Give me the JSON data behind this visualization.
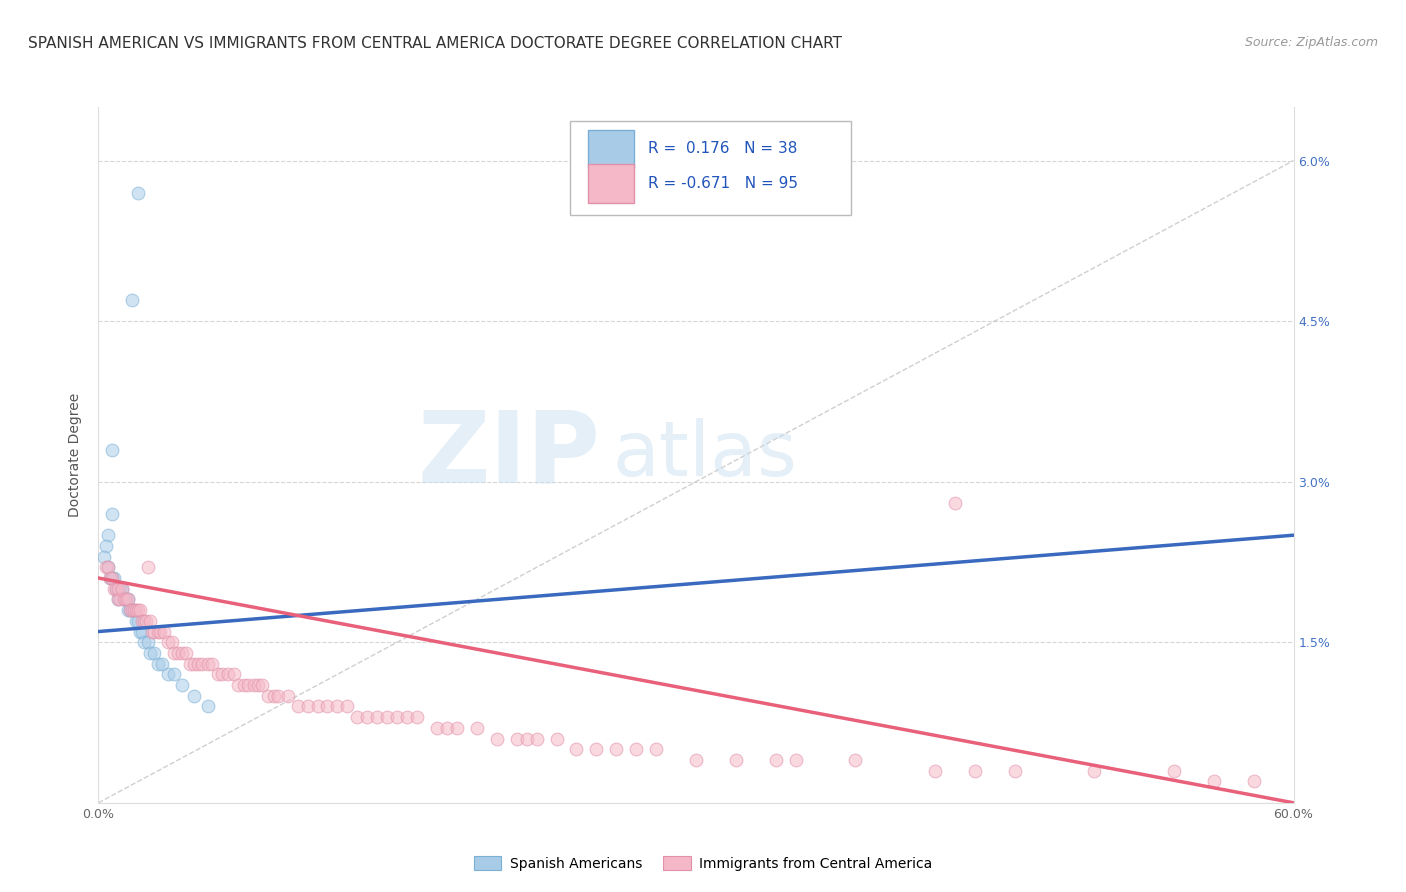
{
  "title": "SPANISH AMERICAN VS IMMIGRANTS FROM CENTRAL AMERICA DOCTORATE DEGREE CORRELATION CHART",
  "source": "Source: ZipAtlas.com",
  "ylabel": "Doctorate Degree",
  "xlim": [
    0.0,
    0.6
  ],
  "ylim": [
    0.0,
    0.065
  ],
  "xticks": [
    0.0,
    0.1,
    0.2,
    0.3,
    0.4,
    0.5,
    0.6
  ],
  "xticklabels": [
    "0.0%",
    "",
    "",
    "",
    "",
    "",
    "60.0%"
  ],
  "yticks": [
    0.0,
    0.015,
    0.03,
    0.045,
    0.06
  ],
  "yticklabels_right": [
    "",
    "1.5%",
    "3.0%",
    "4.5%",
    "6.0%"
  ],
  "blue_color": "#a8cce8",
  "pink_color": "#f5b8c8",
  "blue_line_color": "#3a6abf",
  "pink_line_color": "#e8607a",
  "blue_edge_color": "#7aaed4",
  "pink_edge_color": "#e090a8",
  "watermark_zip": "ZIP",
  "watermark_atlas": "atlas",
  "background_color": "#ffffff",
  "grid_color": "#cccccc",
  "blue_scatter_x": [
    0.02,
    0.017,
    0.007,
    0.007,
    0.005,
    0.004,
    0.003,
    0.005,
    0.006,
    0.007,
    0.008,
    0.009,
    0.01,
    0.01,
    0.011,
    0.012,
    0.013,
    0.014,
    0.015,
    0.015,
    0.016,
    0.017,
    0.018,
    0.019,
    0.02,
    0.021,
    0.022,
    0.023,
    0.025,
    0.026,
    0.028,
    0.03,
    0.032,
    0.035,
    0.038,
    0.042,
    0.048,
    0.055
  ],
  "blue_scatter_y": [
    0.057,
    0.047,
    0.033,
    0.027,
    0.025,
    0.024,
    0.023,
    0.022,
    0.021,
    0.021,
    0.021,
    0.02,
    0.02,
    0.019,
    0.02,
    0.02,
    0.019,
    0.019,
    0.019,
    0.018,
    0.018,
    0.018,
    0.018,
    0.017,
    0.017,
    0.016,
    0.016,
    0.015,
    0.015,
    0.014,
    0.014,
    0.013,
    0.013,
    0.012,
    0.012,
    0.011,
    0.01,
    0.009
  ],
  "pink_scatter_x": [
    0.004,
    0.005,
    0.006,
    0.007,
    0.008,
    0.009,
    0.01,
    0.01,
    0.011,
    0.012,
    0.013,
    0.014,
    0.015,
    0.016,
    0.017,
    0.018,
    0.019,
    0.02,
    0.021,
    0.022,
    0.023,
    0.024,
    0.025,
    0.026,
    0.027,
    0.028,
    0.03,
    0.031,
    0.033,
    0.035,
    0.037,
    0.038,
    0.04,
    0.042,
    0.044,
    0.046,
    0.048,
    0.05,
    0.052,
    0.055,
    0.057,
    0.06,
    0.062,
    0.065,
    0.068,
    0.07,
    0.073,
    0.075,
    0.078,
    0.08,
    0.082,
    0.085,
    0.088,
    0.09,
    0.095,
    0.1,
    0.105,
    0.11,
    0.115,
    0.12,
    0.125,
    0.13,
    0.135,
    0.14,
    0.145,
    0.15,
    0.155,
    0.16,
    0.17,
    0.175,
    0.18,
    0.19,
    0.2,
    0.21,
    0.215,
    0.22,
    0.23,
    0.24,
    0.25,
    0.26,
    0.27,
    0.28,
    0.3,
    0.32,
    0.34,
    0.35,
    0.38,
    0.42,
    0.44,
    0.46,
    0.5,
    0.54,
    0.56,
    0.58,
    0.43
  ],
  "pink_scatter_y": [
    0.022,
    0.022,
    0.021,
    0.021,
    0.02,
    0.02,
    0.019,
    0.02,
    0.019,
    0.02,
    0.019,
    0.019,
    0.019,
    0.018,
    0.018,
    0.018,
    0.018,
    0.018,
    0.018,
    0.017,
    0.017,
    0.017,
    0.022,
    0.017,
    0.016,
    0.016,
    0.016,
    0.016,
    0.016,
    0.015,
    0.015,
    0.014,
    0.014,
    0.014,
    0.014,
    0.013,
    0.013,
    0.013,
    0.013,
    0.013,
    0.013,
    0.012,
    0.012,
    0.012,
    0.012,
    0.011,
    0.011,
    0.011,
    0.011,
    0.011,
    0.011,
    0.01,
    0.01,
    0.01,
    0.01,
    0.009,
    0.009,
    0.009,
    0.009,
    0.009,
    0.009,
    0.008,
    0.008,
    0.008,
    0.008,
    0.008,
    0.008,
    0.008,
    0.007,
    0.007,
    0.007,
    0.007,
    0.006,
    0.006,
    0.006,
    0.006,
    0.006,
    0.005,
    0.005,
    0.005,
    0.005,
    0.005,
    0.004,
    0.004,
    0.004,
    0.004,
    0.004,
    0.003,
    0.003,
    0.003,
    0.003,
    0.003,
    0.002,
    0.002,
    0.028
  ],
  "blue_line_x": [
    0.0,
    0.6
  ],
  "blue_line_y": [
    0.016,
    0.025
  ],
  "pink_line_x": [
    0.0,
    0.6
  ],
  "pink_line_y": [
    0.021,
    0.0
  ],
  "ref_line_x": [
    0.0,
    0.6
  ],
  "ref_line_y": [
    0.0,
    0.06
  ],
  "title_fontsize": 11,
  "axis_label_fontsize": 10,
  "tick_fontsize": 9,
  "marker_size": 85,
  "marker_alpha": 0.55
}
